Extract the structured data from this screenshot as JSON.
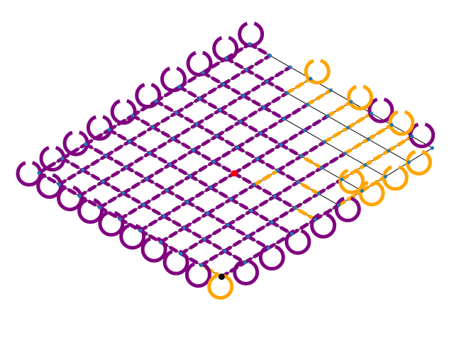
{
  "figure": {
    "kind": "grid-graph-diagram",
    "grid": {
      "rows": 10,
      "cols": 10
    },
    "colors": {
      "background": "#ffffff",
      "edge": "#000000",
      "node": "#1f77b4",
      "purple_path": "#800080",
      "orange_path": "#ffa500",
      "start_marker": "#ff0000",
      "end_marker": "#000000"
    },
    "markers": {
      "start": {
        "row": 5,
        "col": 4,
        "label": ""
      },
      "end": {
        "row": 9,
        "col": 0,
        "label": ""
      }
    },
    "edges": {
      "purple_segments": [
        [
          9,
          0,
          9,
          1
        ],
        [
          9,
          1,
          9,
          2
        ],
        [
          9,
          2,
          9,
          3
        ],
        [
          9,
          3,
          9,
          4
        ],
        [
          9,
          4,
          9,
          5
        ],
        [
          8,
          0,
          8,
          1
        ],
        [
          8,
          1,
          8,
          2
        ],
        [
          8,
          2,
          8,
          3
        ],
        [
          8,
          3,
          8,
          4
        ],
        [
          8,
          4,
          8,
          5
        ],
        [
          8,
          5,
          8,
          6
        ],
        [
          7,
          0,
          7,
          1
        ],
        [
          7,
          1,
          7,
          2
        ],
        [
          7,
          2,
          7,
          3
        ],
        [
          7,
          3,
          7,
          4
        ],
        [
          7,
          4,
          7,
          5
        ],
        [
          7,
          5,
          7,
          6
        ],
        [
          7,
          6,
          7,
          7
        ],
        [
          6,
          0,
          6,
          1
        ],
        [
          6,
          1,
          6,
          2
        ],
        [
          6,
          2,
          6,
          3
        ],
        [
          6,
          3,
          6,
          4
        ],
        [
          6,
          4,
          6,
          5
        ],
        [
          6,
          5,
          6,
          6
        ],
        [
          6,
          6,
          6,
          7
        ],
        [
          5,
          0,
          5,
          1
        ],
        [
          5,
          1,
          5,
          2
        ],
        [
          5,
          2,
          5,
          3
        ],
        [
          5,
          3,
          5,
          4
        ],
        [
          5,
          4,
          5,
          5
        ],
        [
          5,
          5,
          5,
          6
        ],
        [
          5,
          6,
          5,
          7
        ],
        [
          5,
          7,
          5,
          8
        ],
        [
          4,
          0,
          4,
          1
        ],
        [
          4,
          1,
          4,
          2
        ],
        [
          4,
          2,
          4,
          3
        ],
        [
          4,
          3,
          4,
          4
        ],
        [
          4,
          4,
          4,
          5
        ],
        [
          4,
          5,
          4,
          6
        ],
        [
          4,
          6,
          4,
          7
        ],
        [
          4,
          7,
          4,
          8
        ],
        [
          3,
          0,
          3,
          1
        ],
        [
          3,
          1,
          3,
          2
        ],
        [
          3,
          2,
          3,
          3
        ],
        [
          3,
          3,
          3,
          4
        ],
        [
          3,
          4,
          3,
          5
        ],
        [
          3,
          5,
          3,
          6
        ],
        [
          3,
          6,
          3,
          7
        ],
        [
          3,
          7,
          3,
          8
        ],
        [
          2,
          0,
          2,
          1
        ],
        [
          2,
          1,
          2,
          2
        ],
        [
          2,
          2,
          2,
          3
        ],
        [
          2,
          3,
          2,
          4
        ],
        [
          2,
          4,
          2,
          5
        ],
        [
          2,
          5,
          2,
          6
        ],
        [
          2,
          6,
          2,
          7
        ],
        [
          2,
          7,
          2,
          8
        ],
        [
          2,
          8,
          2,
          9
        ],
        [
          1,
          0,
          1,
          1
        ],
        [
          1,
          1,
          1,
          2
        ],
        [
          1,
          2,
          1,
          3
        ],
        [
          1,
          3,
          1,
          4
        ],
        [
          1,
          4,
          1,
          5
        ],
        [
          1,
          5,
          1,
          6
        ],
        [
          1,
          6,
          1,
          7
        ],
        [
          1,
          7,
          1,
          8
        ],
        [
          1,
          8,
          1,
          9
        ],
        [
          0,
          0,
          0,
          1
        ],
        [
          0,
          1,
          0,
          2
        ],
        [
          0,
          2,
          0,
          3
        ],
        [
          0,
          3,
          0,
          4
        ],
        [
          0,
          4,
          0,
          5
        ],
        [
          0,
          5,
          0,
          6
        ],
        [
          0,
          6,
          0,
          7
        ],
        [
          0,
          7,
          0,
          8
        ],
        [
          0,
          8,
          0,
          9
        ],
        [
          0,
          0,
          1,
          0
        ],
        [
          1,
          0,
          2,
          0
        ],
        [
          2,
          0,
          3,
          0
        ],
        [
          3,
          0,
          4,
          0
        ],
        [
          4,
          0,
          5,
          0
        ],
        [
          5,
          0,
          6,
          0
        ],
        [
          6,
          0,
          7,
          0
        ],
        [
          7,
          0,
          8,
          0
        ],
        [
          0,
          1,
          1,
          1
        ],
        [
          1,
          1,
          2,
          1
        ],
        [
          2,
          1,
          3,
          1
        ],
        [
          3,
          1,
          4,
          1
        ],
        [
          4,
          1,
          5,
          1
        ],
        [
          5,
          1,
          6,
          1
        ],
        [
          6,
          1,
          7,
          1
        ],
        [
          7,
          1,
          8,
          1
        ],
        [
          8,
          1,
          9,
          1
        ],
        [
          0,
          2,
          1,
          2
        ],
        [
          1,
          2,
          2,
          2
        ],
        [
          2,
          2,
          3,
          2
        ],
        [
          3,
          2,
          4,
          2
        ],
        [
          4,
          2,
          5,
          2
        ],
        [
          5,
          2,
          6,
          2
        ],
        [
          6,
          2,
          7,
          2
        ],
        [
          7,
          2,
          8,
          2
        ],
        [
          8,
          2,
          9,
          2
        ],
        [
          0,
          3,
          1,
          3
        ],
        [
          1,
          3,
          2,
          3
        ],
        [
          2,
          3,
          3,
          3
        ],
        [
          3,
          3,
          4,
          3
        ],
        [
          4,
          3,
          5,
          3
        ],
        [
          5,
          3,
          6,
          3
        ],
        [
          6,
          3,
          7,
          3
        ],
        [
          7,
          3,
          8,
          3
        ],
        [
          8,
          3,
          9,
          3
        ],
        [
          0,
          4,
          1,
          4
        ],
        [
          1,
          4,
          2,
          4
        ],
        [
          2,
          4,
          3,
          4
        ],
        [
          3,
          4,
          4,
          4
        ],
        [
          4,
          4,
          5,
          4
        ],
        [
          5,
          4,
          6,
          4
        ],
        [
          6,
          4,
          7,
          4
        ],
        [
          7,
          4,
          8,
          4
        ],
        [
          0,
          5,
          1,
          5
        ],
        [
          1,
          5,
          2,
          5
        ],
        [
          2,
          5,
          3,
          5
        ],
        [
          3,
          5,
          4,
          5
        ],
        [
          4,
          5,
          5,
          5
        ],
        [
          5,
          5,
          6,
          5
        ],
        [
          6,
          5,
          7,
          5
        ],
        [
          0,
          6,
          1,
          6
        ],
        [
          1,
          6,
          2,
          6
        ],
        [
          2,
          6,
          3,
          6
        ],
        [
          3,
          6,
          4,
          6
        ],
        [
          4,
          6,
          5,
          6
        ],
        [
          5,
          6,
          6,
          6
        ],
        [
          0,
          7,
          1,
          7
        ],
        [
          1,
          7,
          2,
          7
        ],
        [
          2,
          7,
          3,
          7
        ],
        [
          3,
          7,
          4,
          7
        ],
        [
          0,
          8,
          1,
          8
        ],
        [
          1,
          8,
          2,
          8
        ],
        [
          2,
          8,
          3,
          8
        ],
        [
          0,
          9,
          1,
          9
        ]
      ],
      "orange_segments": [
        [
          9,
          0,
          8,
          0
        ],
        [
          9,
          5,
          9,
          6
        ],
        [
          9,
          6,
          9,
          7
        ],
        [
          8,
          6,
          8,
          7
        ],
        [
          8,
          7,
          8,
          8
        ],
        [
          7,
          7,
          7,
          8
        ],
        [
          6,
          7,
          6,
          8
        ],
        [
          6,
          8,
          6,
          9
        ],
        [
          5,
          8,
          5,
          9
        ],
        [
          4,
          8,
          4,
          9
        ],
        [
          3,
          8,
          3,
          9
        ],
        [
          7,
          8,
          7,
          9
        ],
        [
          8,
          8,
          8,
          9
        ],
        [
          9,
          4,
          8,
          4
        ],
        [
          8,
          5,
          7,
          5
        ],
        [
          7,
          6,
          6,
          6
        ],
        [
          6,
          4,
          6,
          5
        ]
      ],
      "purple_self_loops": [
        [
          0,
          0
        ],
        [
          0,
          1
        ],
        [
          0,
          2
        ],
        [
          0,
          3
        ],
        [
          0,
          4
        ],
        [
          0,
          5
        ],
        [
          0,
          6
        ],
        [
          0,
          7
        ],
        [
          0,
          8
        ],
        [
          0,
          9
        ],
        [
          1,
          0
        ],
        [
          2,
          0
        ],
        [
          3,
          0
        ],
        [
          4,
          0
        ],
        [
          5,
          0
        ],
        [
          6,
          0
        ],
        [
          7,
          0
        ],
        [
          8,
          0
        ],
        [
          9,
          1
        ],
        [
          9,
          3
        ],
        [
          9,
          4
        ],
        [
          8,
          9
        ],
        [
          9,
          2
        ],
        [
          9,
          5
        ],
        [
          6,
          9
        ]
      ],
      "orange_self_loops": [
        [
          9,
          0
        ],
        [
          9,
          6
        ],
        [
          9,
          7
        ],
        [
          8,
          6
        ],
        [
          7,
          9
        ],
        [
          9,
          8
        ],
        [
          3,
          9
        ],
        [
          5,
          9
        ]
      ]
    }
  }
}
